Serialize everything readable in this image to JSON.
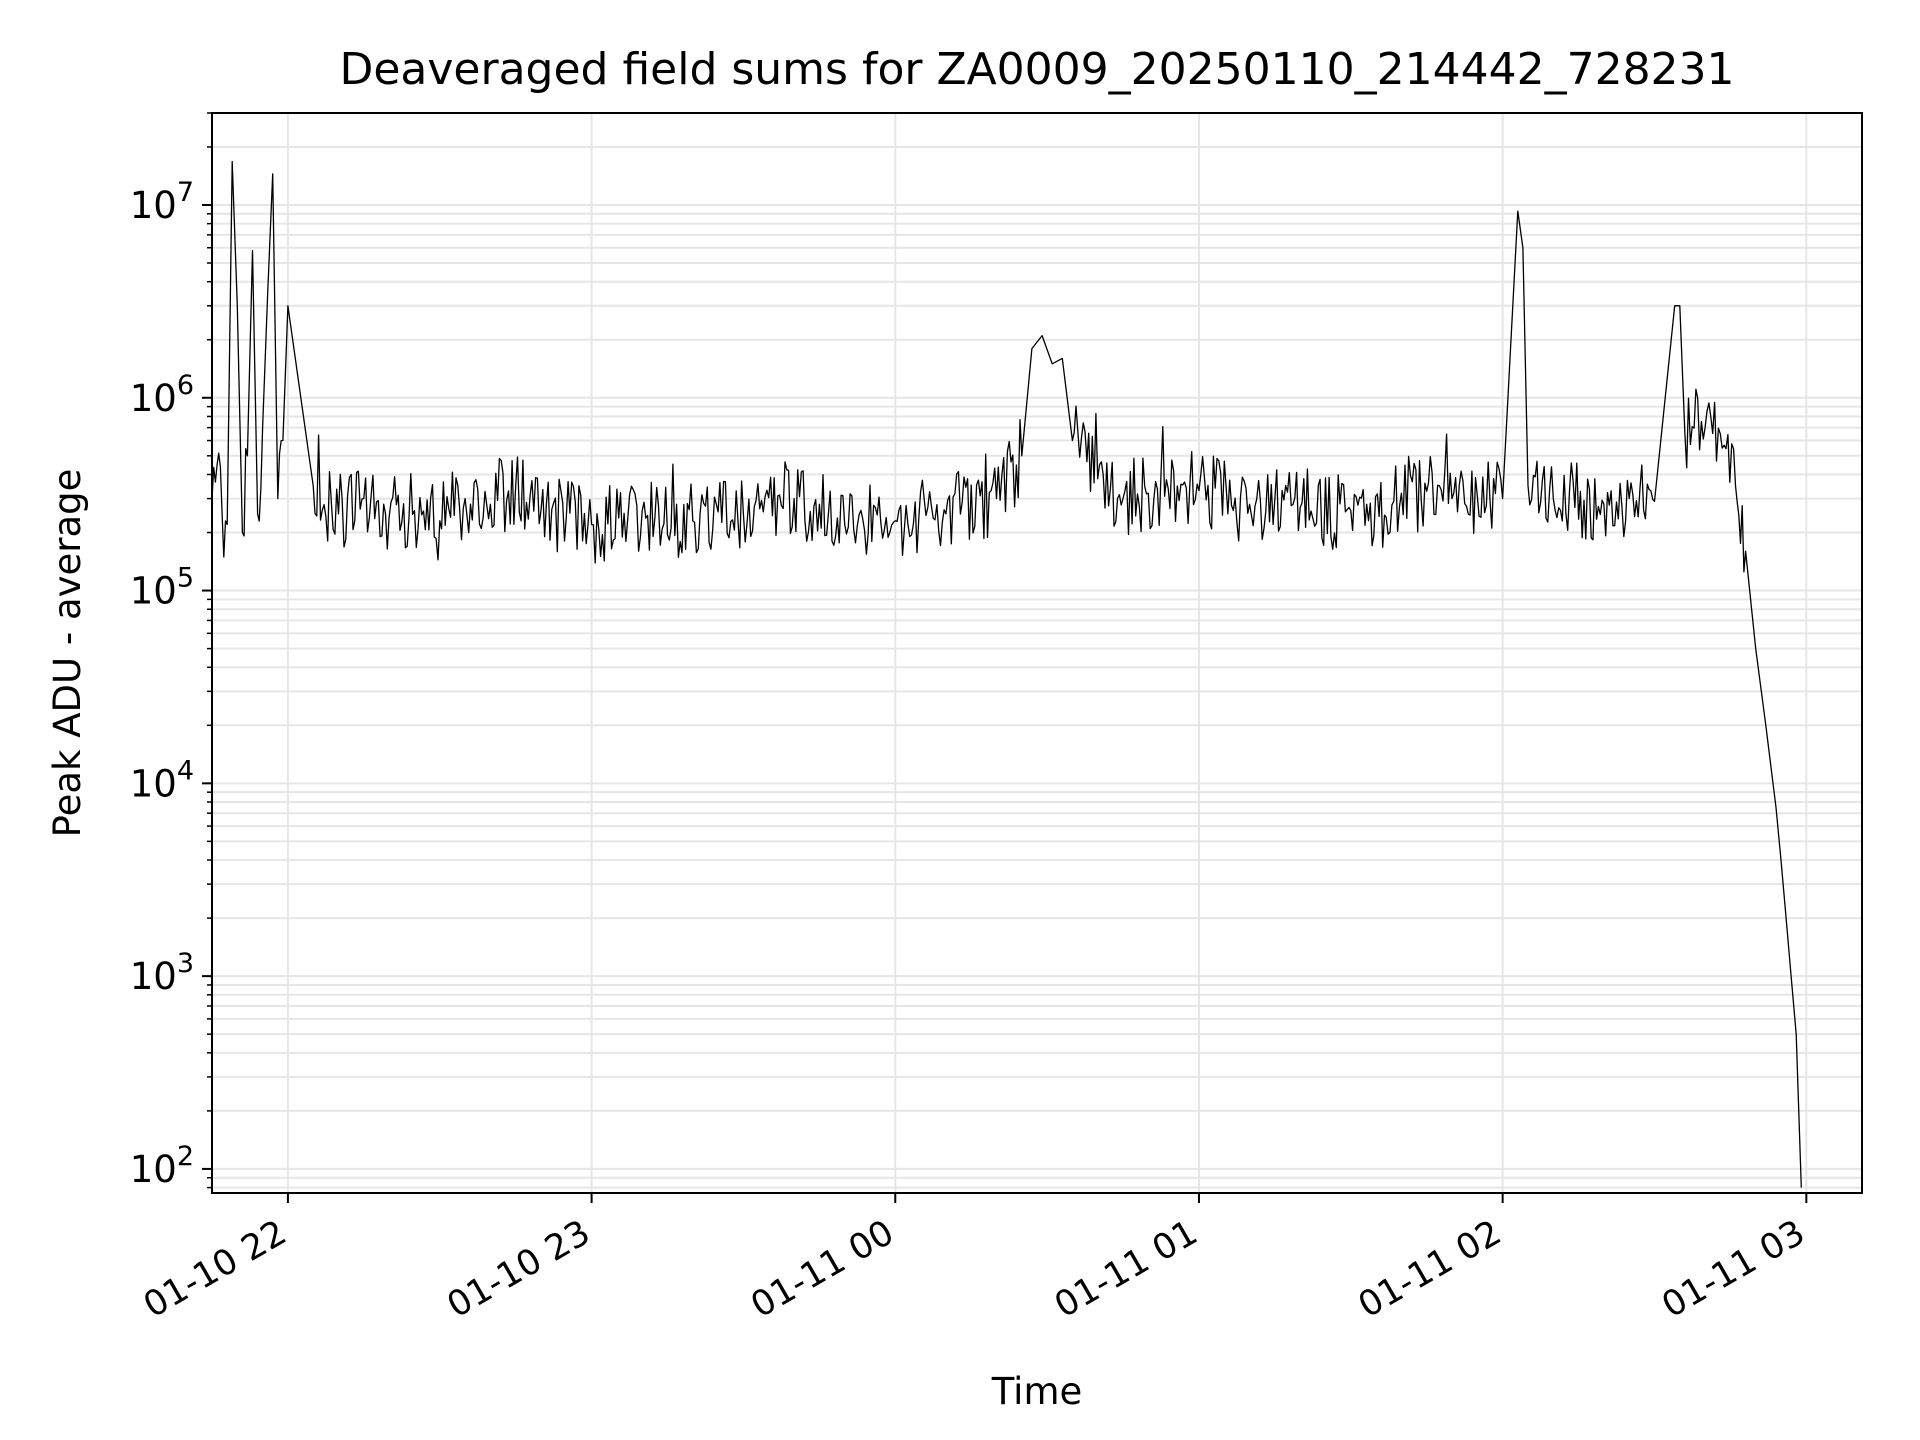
{
  "chart_data": {
    "type": "line",
    "title": "Deaveraged field sums for ZA0009_20250110_214442_728231",
    "xlabel": "Time",
    "ylabel": "Peak ADU - average",
    "yscale": "log",
    "xlim": [
      "2025-01-10 21:45",
      "2025-01-11 03:11"
    ],
    "ylim": [
      75,
      30000000
    ],
    "grid": true,
    "grid_color": "#e6e6e6",
    "line_color": "#000000",
    "xticks": [
      {
        "value": "2025-01-10 22:00",
        "label": "01-10 22"
      },
      {
        "value": "2025-01-10 23:00",
        "label": "01-10 23"
      },
      {
        "value": "2025-01-11 00:00",
        "label": "01-11 00"
      },
      {
        "value": "2025-01-11 01:00",
        "label": "01-11 01"
      },
      {
        "value": "2025-01-11 02:00",
        "label": "01-11 02"
      },
      {
        "value": "2025-01-11 03:00",
        "label": "01-11 03"
      }
    ],
    "yticks": [
      {
        "value": 100,
        "base": "10",
        "exp": "2"
      },
      {
        "value": 1000,
        "base": "10",
        "exp": "3"
      },
      {
        "value": 10000,
        "base": "10",
        "exp": "4"
      },
      {
        "value": 100000,
        "base": "10",
        "exp": "5"
      },
      {
        "value": 1000000,
        "base": "10",
        "exp": "6"
      },
      {
        "value": 10000000,
        "base": "10",
        "exp": "7"
      }
    ],
    "series": [
      {
        "x": [
          "2025-01-10 21:45",
          "2025-01-10 21:46",
          "2025-01-10 21:47",
          "2025-01-10 21:48",
          "2025-01-10 21:49",
          "2025-01-10 21:50",
          "2025-01-10 21:51",
          "2025-01-10 21:52",
          "2025-01-10 21:53",
          "2025-01-10 21:54",
          "2025-01-10 21:55",
          "2025-01-10 21:56",
          "2025-01-10 21:57",
          "2025-01-10 21:58",
          "2025-01-10 21:59",
          "2025-01-10 22:00",
          "2025-01-10 22:05",
          "2025-01-10 22:10",
          "2025-01-10 22:15",
          "2025-01-10 22:20",
          "2025-01-10 22:25",
          "2025-01-10 22:30",
          "2025-01-10 22:35",
          "2025-01-10 22:40",
          "2025-01-10 22:45",
          "2025-01-10 22:50",
          "2025-01-10 22:55",
          "2025-01-10 23:00",
          "2025-01-10 23:10",
          "2025-01-10 23:20",
          "2025-01-10 23:30",
          "2025-01-10 23:40",
          "2025-01-10 23:45",
          "2025-01-10 23:50",
          "2025-01-11 00:00",
          "2025-01-11 00:10",
          "2025-01-11 00:20",
          "2025-01-11 00:25",
          "2025-01-11 00:27",
          "2025-01-11 00:29",
          "2025-01-11 00:31",
          "2025-01-11 00:33",
          "2025-01-11 00:35",
          "2025-01-11 00:40",
          "2025-01-11 00:45",
          "2025-01-11 00:50",
          "2025-01-11 01:00",
          "2025-01-11 01:10",
          "2025-01-11 01:15",
          "2025-01-11 01:20",
          "2025-01-11 01:30",
          "2025-01-11 01:37",
          "2025-01-11 01:40",
          "2025-01-11 01:50",
          "2025-01-11 01:55",
          "2025-01-11 02:00",
          "2025-01-11 02:03",
          "2025-01-11 02:04",
          "2025-01-11 02:05",
          "2025-01-11 02:10",
          "2025-01-11 02:20",
          "2025-01-11 02:25",
          "2025-01-11 02:30",
          "2025-01-11 02:34",
          "2025-01-11 02:35",
          "2025-01-11 02:36",
          "2025-01-11 02:40",
          "2025-01-11 02:43",
          "2025-01-11 02:46",
          "2025-01-11 02:48",
          "2025-01-11 02:50",
          "2025-01-11 02:52",
          "2025-01-11 02:54",
          "2025-01-11 02:55",
          "2025-01-11 02:56",
          "2025-01-11 02:57",
          "2025-01-11 02:58",
          "2025-01-11 02:59"
        ],
        "y": [
          300000,
          450000,
          250000,
          220000,
          16800000,
          3000000,
          200000,
          500000,
          5800000,
          250000,
          700000,
          3500000,
          14500000,
          300000,
          600000,
          3000000,
          350000,
          250000,
          300000,
          240000,
          260000,
          230000,
          300000,
          280000,
          350000,
          260000,
          240000,
          220000,
          260000,
          230000,
          250000,
          300000,
          280000,
          220000,
          230000,
          250000,
          300000,
          500000,
          1800000,
          2100000,
          1500000,
          1600000,
          600000,
          380000,
          300000,
          320000,
          330000,
          280000,
          300000,
          270000,
          260000,
          240000,
          320000,
          300000,
          310000,
          300000,
          9300000,
          6000000,
          350000,
          300000,
          280000,
          300000,
          290000,
          3000000,
          3000000,
          650000,
          700000,
          650000,
          350000,
          160000,
          50000,
          20000,
          7500,
          4000,
          2000,
          1000,
          500,
          80
        ]
      }
    ]
  }
}
